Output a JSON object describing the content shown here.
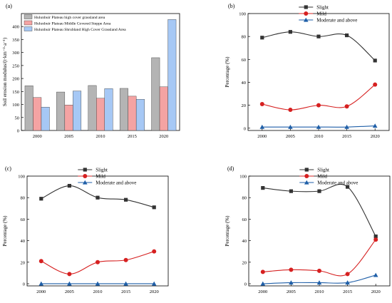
{
  "chart_data": [
    {
      "panel": "(a)",
      "type": "bar",
      "categories": [
        "2000",
        "2005",
        "2010",
        "2015",
        "2020"
      ],
      "series": [
        {
          "name": "Hulunbuir Plateau high cover grassland area",
          "color": "#b4b4b4",
          "values": [
            172,
            148,
            173,
            162,
            280
          ]
        },
        {
          "name": "Hulunbuir Plateau Middle Covered Steppe Area",
          "color": "#f4a3a3",
          "values": [
            127,
            98,
            124,
            132,
            168
          ]
        },
        {
          "name": "Hulunbuir Plateau Shrubland High Cover Grassland Area",
          "color": "#a6c8f5",
          "values": [
            90,
            152,
            161,
            120,
            427
          ]
        }
      ],
      "ylabel": "Soil erosion modulus/(t·km⁻²·a⁻¹)",
      "ylim": [
        0,
        450
      ],
      "yticks": [
        0,
        50,
        100,
        150,
        200,
        250,
        300,
        350,
        400
      ],
      "legend_position": "top-left"
    },
    {
      "panel": "(b)",
      "type": "line",
      "x": [
        "2000",
        "2005",
        "2010",
        "2015",
        "2020"
      ],
      "series": [
        {
          "name": "Slight",
          "color": "#333333",
          "marker": "square",
          "values": [
            79,
            84,
            80,
            81,
            59
          ]
        },
        {
          "name": "Mild",
          "color": "#d62020",
          "marker": "circle",
          "values": [
            21,
            16,
            20,
            19,
            38
          ]
        },
        {
          "name": "Moderate and above",
          "color": "#1f5fa8",
          "marker": "triangle",
          "values": [
            1,
            1,
            1,
            1,
            2
          ]
        }
      ],
      "ylabel": "Percentage (%)",
      "ylim": [
        -2,
        100
      ],
      "yticks": [
        0,
        20,
        40,
        60,
        80,
        100
      ],
      "legend_position": "top-center"
    },
    {
      "panel": "(c)",
      "type": "line",
      "x": [
        "2000",
        "2005",
        "2010",
        "2015",
        "2020"
      ],
      "series": [
        {
          "name": "Slight",
          "color": "#333333",
          "marker": "square",
          "values": [
            79,
            91,
            80,
            78,
            71
          ]
        },
        {
          "name": "Mild",
          "color": "#d62020",
          "marker": "circle",
          "values": [
            21,
            9,
            20,
            22,
            30
          ]
        },
        {
          "name": "Moderate and above",
          "color": "#1f5fa8",
          "marker": "triangle",
          "values": [
            0,
            0,
            0,
            0,
            0
          ]
        }
      ],
      "ylabel": "Percentage (%)",
      "ylim": [
        -2,
        100
      ],
      "yticks": [
        0,
        20,
        40,
        60,
        80,
        100
      ],
      "legend_position": "top-center"
    },
    {
      "panel": "(d)",
      "type": "line",
      "x": [
        "2000",
        "2005",
        "2010",
        "2015",
        "2020"
      ],
      "series": [
        {
          "name": "Slight",
          "color": "#333333",
          "marker": "square",
          "values": [
            89,
            86,
            86,
            90,
            44
          ]
        },
        {
          "name": "Mild",
          "color": "#d62020",
          "marker": "circle",
          "values": [
            11,
            13,
            12,
            9,
            41
          ]
        },
        {
          "name": "Moderate and above",
          "color": "#1f5fa8",
          "marker": "triangle",
          "values": [
            0,
            1,
            1,
            1,
            8
          ]
        }
      ],
      "ylabel": "Percentage (%)",
      "ylim": [
        -2,
        100
      ],
      "yticks": [
        0,
        20,
        40,
        60,
        80,
        100
      ],
      "legend_position": "top-center"
    }
  ]
}
